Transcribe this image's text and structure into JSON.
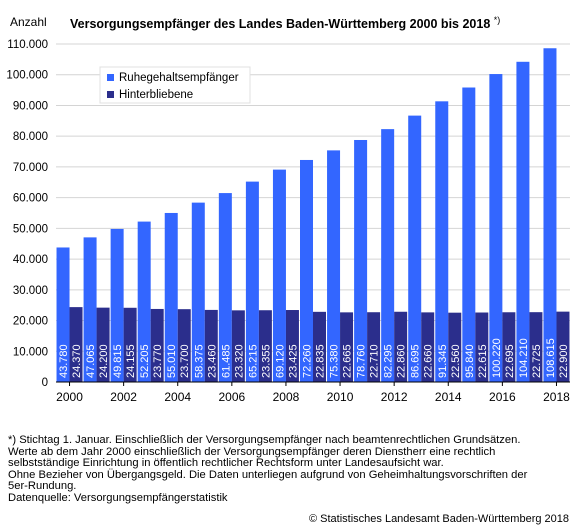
{
  "header": {
    "y_unit": "Anzahl",
    "title": "Versorgungsempfänger des Landes Baden-Württemberg 2000 bis 2018",
    "title_marker": "*)"
  },
  "chart_data": {
    "type": "bar",
    "categories": [
      "2000",
      "2001",
      "2002",
      "2003",
      "2004",
      "2005",
      "2006",
      "2007",
      "2008",
      "2009",
      "2010",
      "2011",
      "2012",
      "2013",
      "2014",
      "2015",
      "2016",
      "2017",
      "2018"
    ],
    "x_tick_labels": [
      "2000",
      "2002",
      "2004",
      "2006",
      "2008",
      "2010",
      "2012",
      "2014",
      "2016",
      "2018"
    ],
    "series": [
      {
        "name": "Ruhegehaltsempfänger",
        "color": "#3366ff",
        "values": [
          43780,
          47065,
          49815,
          52205,
          55010,
          58375,
          61485,
          65215,
          69120,
          72260,
          75380,
          78760,
          82295,
          86695,
          91345,
          95840,
          100220,
          104210,
          108615
        ],
        "labels": [
          "43.780",
          "47.065",
          "49.815",
          "52.205",
          "55.010",
          "58.375",
          "61.485",
          "65.215",
          "69.120",
          "72.260",
          "75.380",
          "78.760",
          "82.295",
          "86.695",
          "91.345",
          "95.840",
          "100.220",
          "104.210",
          "108.615"
        ]
      },
      {
        "name": "Hinterbliebene",
        "color": "#2b2e8c",
        "values": [
          24370,
          24200,
          24155,
          23770,
          23700,
          23460,
          23320,
          23355,
          23425,
          22835,
          22665,
          22710,
          22860,
          22660,
          22560,
          22615,
          22695,
          22725,
          22900
        ],
        "labels": [
          "24.370",
          "24.200",
          "24.155",
          "23.770",
          "23.700",
          "23.460",
          "23.320",
          "23.355",
          "23.425",
          "22.835",
          "22.665",
          "22.710",
          "22.860",
          "22.660",
          "22.560",
          "22.615",
          "22.695",
          "22.725",
          "22.900"
        ]
      }
    ],
    "y_ticks": [
      0,
      10000,
      20000,
      30000,
      40000,
      50000,
      60000,
      70000,
      80000,
      90000,
      100000,
      110000
    ],
    "y_tick_labels": [
      "0",
      "10.000",
      "20.000",
      "30.000",
      "40.000",
      "50.000",
      "60.000",
      "70.000",
      "80.000",
      "90.000",
      "100.000",
      "110.000"
    ],
    "ylim": [
      0,
      110000
    ],
    "grid": "horizontal",
    "legend_position": "top-left",
    "value_labels": "inside bars, vertical"
  },
  "footnote": {
    "lines": [
      "*)  Stichtag 1. Januar. Einschließlich der Versorgungsempfänger nach beamtenrechtlichen Grundsätzen.",
      "Werte ab dem Jahr 2000 einschließlich der Versorgungsempfänger deren Dienstherr eine rechtlich",
      "selbstständige Einrichtung in öffentlich rechtlicher Rechtsform unter Landesaufsicht war.",
      "Ohne Bezieher von Übergangsgeld. Die Daten unterliegen aufgrund von Geheimhaltungsvorschriften der",
      "5er-Rundung.",
      "Datenquelle: Versorgungsempfängerstatistik"
    ]
  },
  "copyright": "© Statistisches Landesamt Baden-Württemberg 2018"
}
